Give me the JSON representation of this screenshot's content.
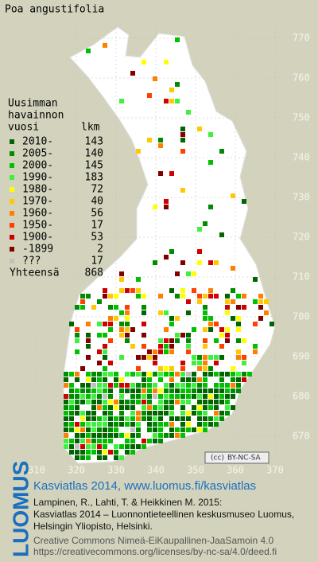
{
  "title": "Poa angustifolia",
  "legend": {
    "heading": [
      "Uusimman",
      "havainnon"
    ],
    "year_header": "vuosi",
    "count_header": "lkm",
    "rows": [
      {
        "label": "2010-",
        "count": 143,
        "color": "#006400"
      },
      {
        "label": "2005-",
        "count": 140,
        "color": "#008c00"
      },
      {
        "label": "2000-",
        "count": 145,
        "color": "#00c000"
      },
      {
        "label": "1990-",
        "count": 183,
        "color": "#40f040"
      },
      {
        "label": "1980-",
        "count": 72,
        "color": "#ffff00"
      },
      {
        "label": "1970-",
        "count": 40,
        "color": "#ffc800"
      },
      {
        "label": "1960-",
        "count": 56,
        "color": "#ff8000"
      },
      {
        "label": "1950-",
        "count": 17,
        "color": "#ff4000"
      },
      {
        "label": "1900-",
        "count": 53,
        "color": "#d00000"
      },
      {
        "label": "-1899",
        "count": 2,
        "color": "#800000"
      },
      {
        "label": "???",
        "count": 17,
        "color": "#c0c0c0"
      }
    ],
    "total_label": "Yhteensä",
    "total": 868
  },
  "axes": {
    "y_labels": [
      770,
      760,
      750,
      740,
      730,
      720,
      710,
      700,
      690,
      680,
      670
    ],
    "x_labels": [
      310,
      320,
      330,
      340,
      350,
      360,
      370
    ]
  },
  "license_badge": "BY-NC-SA",
  "footer": {
    "logo": "LUOMUS",
    "headline": "Kasviatlas 2014, www.luomus.fi/kasviatlas",
    "citation": [
      "Lampinen, R., Lahti, T. & Heikkinen M. 2015:",
      "Kasviatlas 2014 – Luonnontieteellinen keskusmuseo Luomus,",
      "Helsingin Yliopisto, Helsinki."
    ],
    "license": [
      "Creative Commons Nimeä-EiKaupallinen-JaaSamoin 4.0",
      "https://creativecommons.org/licenses/by-nc-sa/4.0/deed.fi"
    ]
  }
}
